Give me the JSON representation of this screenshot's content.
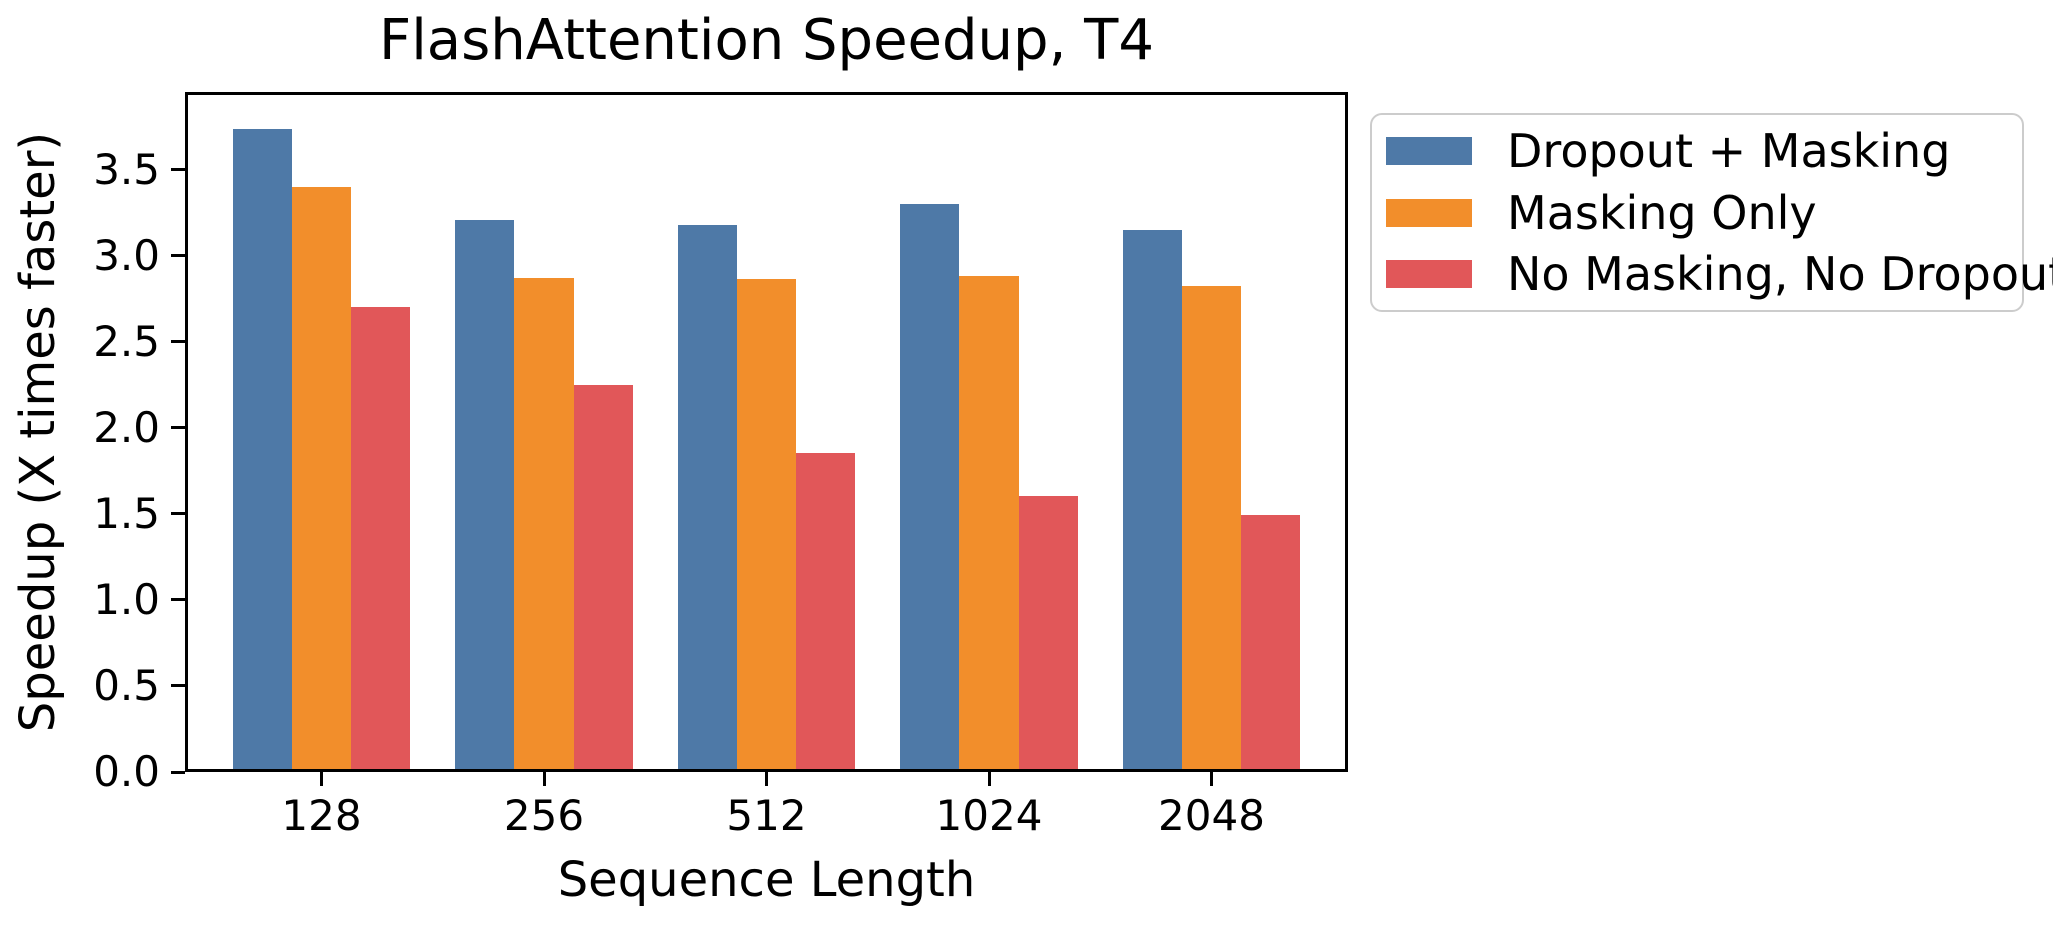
{
  "chart_data": {
    "type": "bar",
    "title": "FlashAttention Speedup, T4",
    "xlabel": "Sequence Length",
    "ylabel": "Speedup (X times faster)",
    "categories": [
      "128",
      "256",
      "512",
      "1024",
      "2048"
    ],
    "series": [
      {
        "name": "Dropout + Masking",
        "color": "#4E79A7",
        "values": [
          3.75,
          3.22,
          3.19,
          3.31,
          3.16
        ]
      },
      {
        "name": "Masking Only",
        "color": "#F28E2B",
        "values": [
          3.41,
          2.88,
          2.87,
          2.89,
          2.83
        ]
      },
      {
        "name": "No Masking, No Dropout",
        "color": "#E15759",
        "values": [
          2.71,
          2.25,
          1.85,
          1.6,
          1.49
        ]
      }
    ],
    "ylim": [
      0,
      3.95
    ],
    "yticks": [
      0.0,
      0.5,
      1.0,
      1.5,
      2.0,
      2.5,
      3.0,
      3.5
    ],
    "ytick_labels": [
      "0.0",
      "0.5",
      "1.0",
      "1.5",
      "2.0",
      "2.5",
      "3.0",
      "3.5"
    ],
    "grid": false,
    "legend_position": "upper-right-outside",
    "bar_group_width": 0.8
  },
  "colors": {
    "spine": "#000000",
    "text": "#000000",
    "legend_border": "#cccccc",
    "background": "#ffffff"
  }
}
